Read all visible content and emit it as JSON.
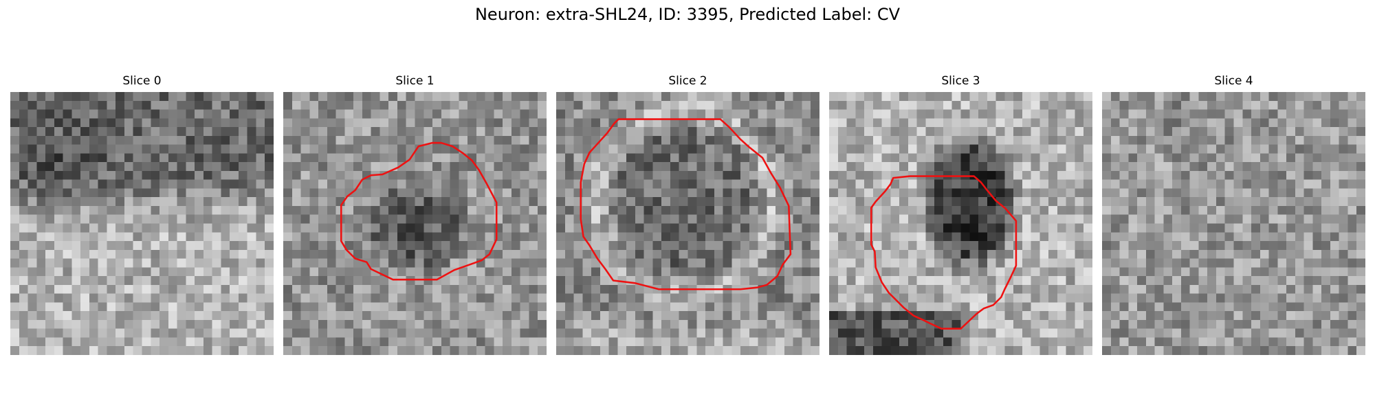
{
  "figure": {
    "title": "Neuron: extra-SHL24, ID: 3395, Predicted Label: CV",
    "contour_color": "#ee1111",
    "colormap": "gray",
    "panels": [
      {
        "title": "Slice 0",
        "has_contour": false
      },
      {
        "title": "Slice 1",
        "has_contour": true
      },
      {
        "title": "Slice 2",
        "has_contour": true
      },
      {
        "title": "Slice 3",
        "has_contour": true
      },
      {
        "title": "Slice 4",
        "has_contour": false
      }
    ]
  }
}
